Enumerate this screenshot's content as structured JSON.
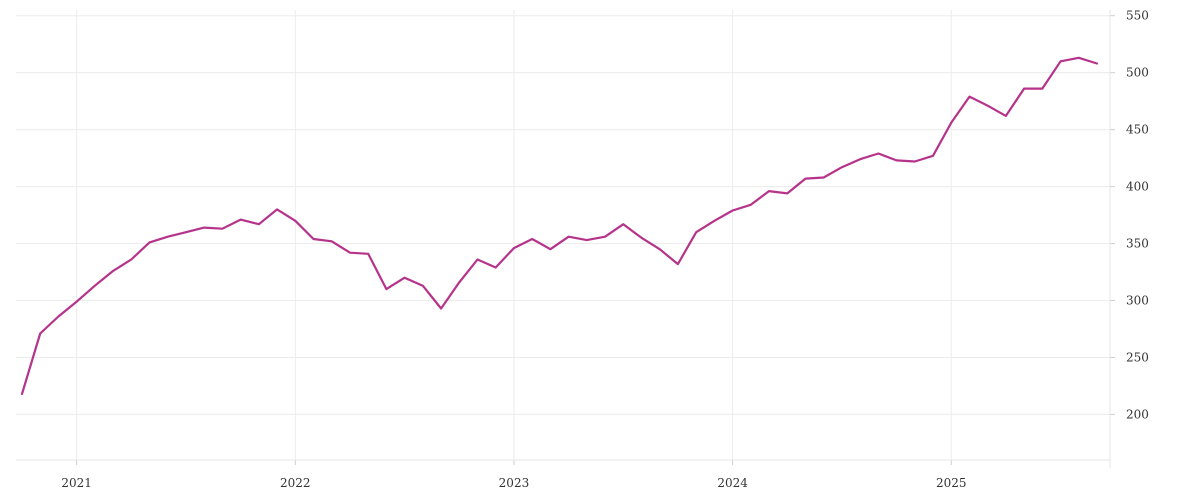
{
  "chart_data": {
    "type": "line",
    "title": "",
    "xlabel": "",
    "ylabel": "",
    "x_tick_labels": [
      "2021",
      "2022",
      "2023",
      "2024",
      "2025"
    ],
    "y_ticks": [
      200,
      250,
      300,
      350,
      400,
      450,
      500,
      550
    ],
    "ylim": [
      160,
      555
    ],
    "xlim": [
      "2020-10",
      "2025-09"
    ],
    "grid": true,
    "y_axis_position": "right",
    "colors": {
      "line": "#b5338a"
    },
    "series": [
      {
        "x": [
          "2020-10",
          "2020-11",
          "2020-12",
          "2021-01",
          "2021-02",
          "2021-03",
          "2021-04",
          "2021-05",
          "2021-06",
          "2021-07",
          "2021-08",
          "2021-09",
          "2021-10",
          "2021-11",
          "2021-12",
          "2022-01",
          "2022-02",
          "2022-03",
          "2022-04",
          "2022-05",
          "2022-06",
          "2022-07",
          "2022-08",
          "2022-09",
          "2022-10",
          "2022-11",
          "2022-12",
          "2023-01",
          "2023-02",
          "2023-03",
          "2023-04",
          "2023-05",
          "2023-06",
          "2023-07",
          "2023-08",
          "2023-09",
          "2023-10",
          "2023-11",
          "2023-12",
          "2024-01",
          "2024-02",
          "2024-03",
          "2024-04",
          "2024-05",
          "2024-06",
          "2024-07",
          "2024-08",
          "2024-09",
          "2024-10",
          "2024-11",
          "2024-12",
          "2025-01",
          "2025-02",
          "2025-03",
          "2025-04",
          "2025-05",
          "2025-06",
          "2025-07",
          "2025-08",
          "2025-09"
        ],
        "values": [
          218,
          271,
          286,
          299,
          313,
          326,
          336,
          351,
          356,
          360,
          364,
          363,
          371,
          367,
          380,
          370,
          354,
          352,
          342,
          341,
          310,
          320,
          313,
          293,
          316,
          336,
          329,
          346,
          354,
          345,
          356,
          353,
          356,
          367,
          355,
          345,
          332,
          360,
          370,
          379,
          384,
          396,
          394,
          407,
          408,
          417,
          424,
          429,
          423,
          422,
          427,
          456,
          479,
          471,
          462,
          486,
          486,
          510,
          513,
          508
        ]
      }
    ]
  }
}
